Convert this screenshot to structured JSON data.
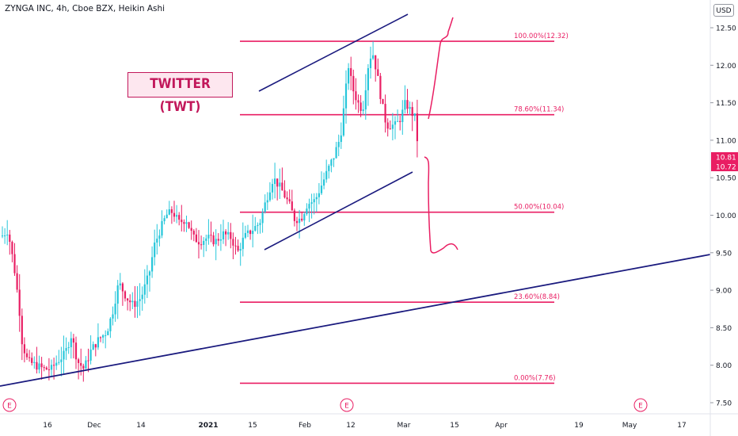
{
  "header": {
    "title": "ZYNGA INC, 4h, Cboe BZX, Heikin Ashi",
    "currency": "USD"
  },
  "annotation": {
    "label": "TWITTER (TWT)"
  },
  "colors": {
    "up": "#26c6da",
    "down": "#e91e63",
    "fib": "#e91e63",
    "trend": "#1a1a7e",
    "drawing": "#e91e63",
    "price_tag": "#e91e63"
  },
  "chart_data": {
    "type": "candlestick",
    "symbol": "ZYNGA INC",
    "interval": "4h",
    "exchange": "Cboe BZX",
    "style": "Heikin Ashi",
    "y_axis": {
      "position": "right",
      "ticks": [
        "12.50",
        "12.00",
        "11.50",
        "11.00",
        "10.50",
        "10.00",
        "9.50",
        "9.00",
        "8.50",
        "8.00",
        "7.50"
      ],
      "range": [
        7.3,
        12.75
      ]
    },
    "x_axis": {
      "ticks": [
        "16",
        "Dec",
        "14",
        "2021",
        "15",
        "Feb",
        "12",
        "Mar",
        "15",
        "Apr",
        "19",
        "May",
        "17"
      ]
    },
    "price_tags": [
      "10.81",
      "10.72"
    ],
    "fibonacci_levels": [
      {
        "label": "100.00%(12.32)",
        "value": 12.32
      },
      {
        "label": "78.60%(11.34)",
        "value": 11.34
      },
      {
        "label": "50.00%(10.04)",
        "value": 10.04
      },
      {
        "label": "23.60%(8.84)",
        "value": 8.84
      },
      {
        "label": "0.00%(7.76)",
        "value": 7.76
      }
    ],
    "earnings_markers": [
      "E",
      "E",
      "E"
    ],
    "candles_summary": {
      "start_close": 9.9,
      "low": 7.85,
      "high": 12.32,
      "last": 10.72
    }
  }
}
